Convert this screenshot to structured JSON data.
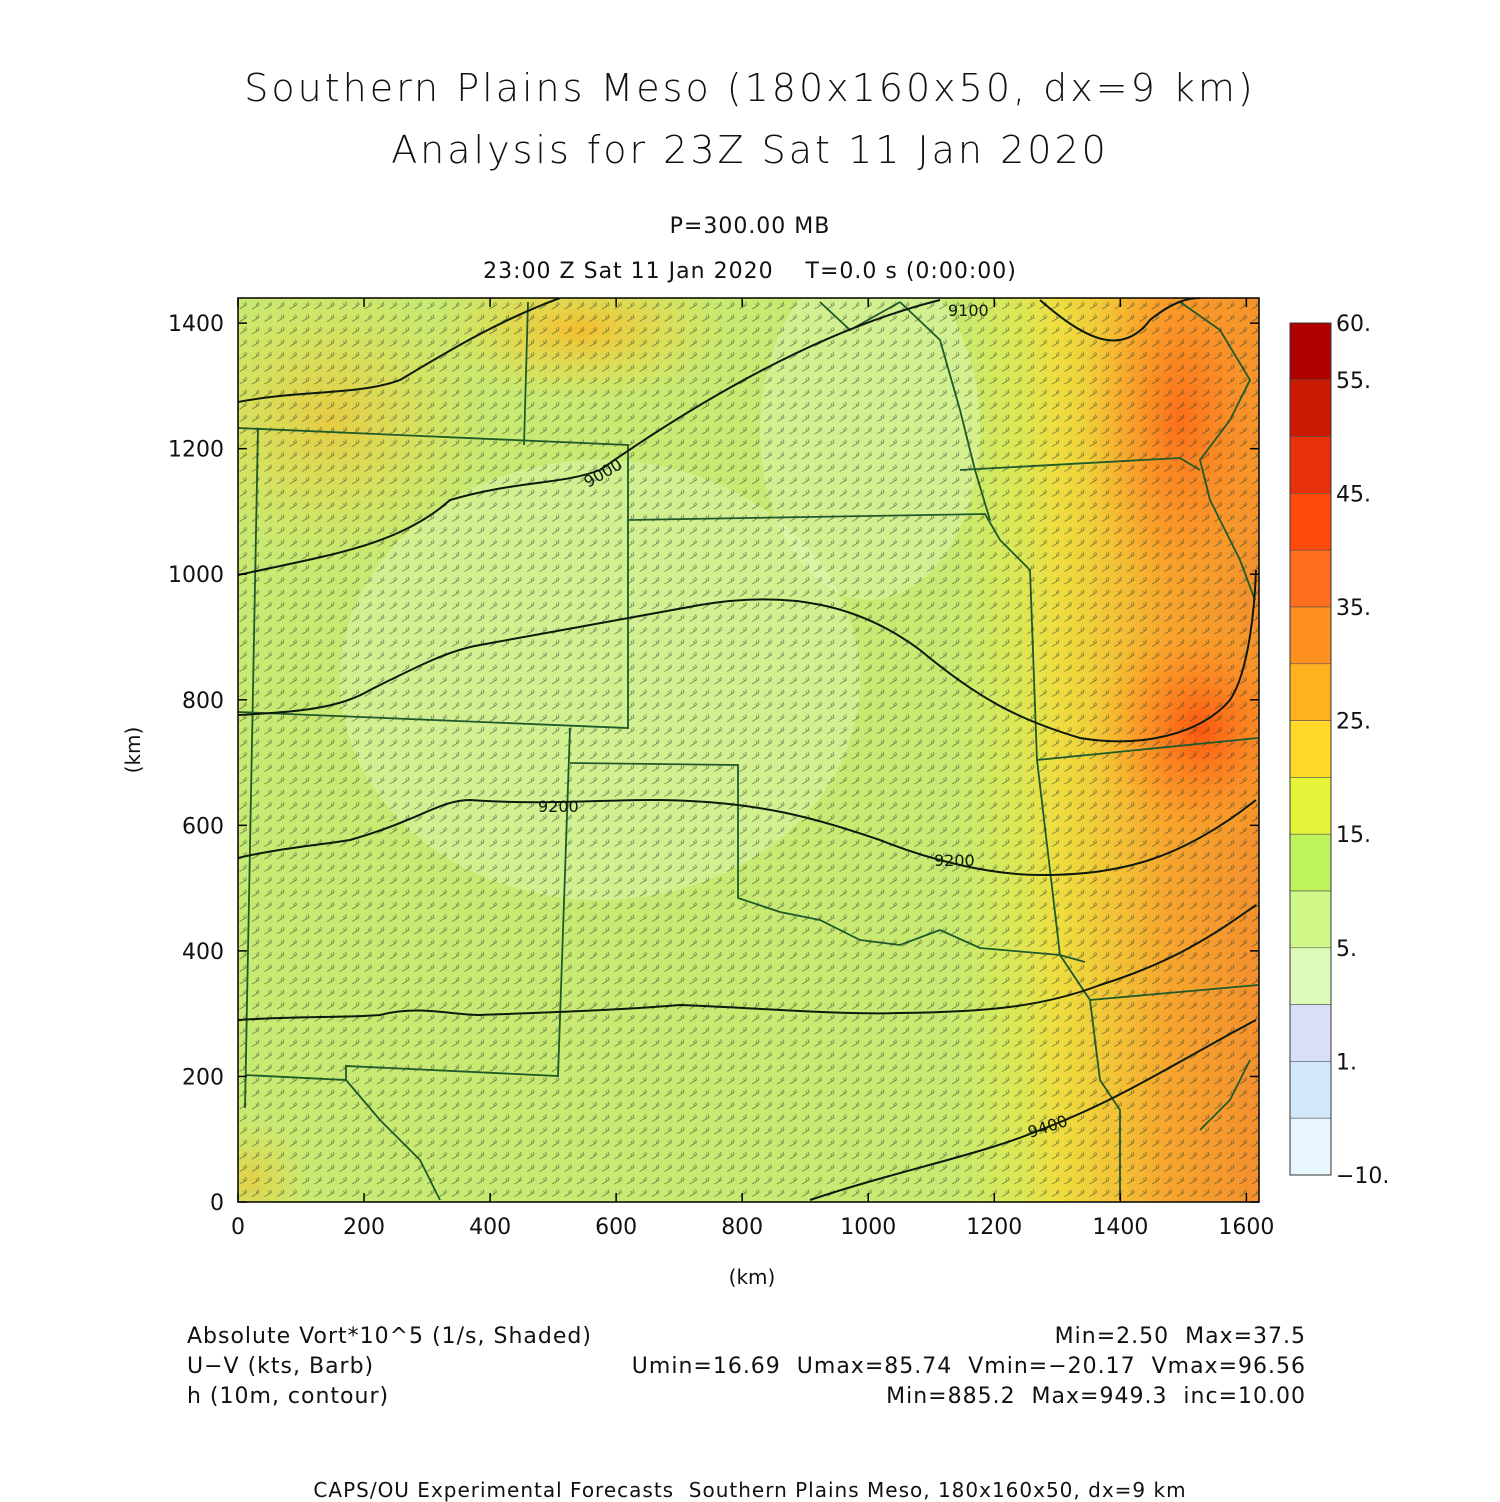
{
  "titles": {
    "line1": "Southern Plains Meso (180x160x50, dx=9 km)",
    "line2": "Analysis for 23Z Sat 11 Jan 2020",
    "level": "P=300.00 MB",
    "time": "23:00 Z Sat 11 Jan 2020    T=0.0 s (0:00:00)"
  },
  "axes": {
    "x_label": "(km)",
    "y_label": "(km)",
    "x_ticks": [
      "0",
      "200",
      "400",
      "600",
      "800",
      "1000",
      "1200",
      "1400",
      "1600"
    ],
    "y_ticks": [
      "0",
      "200",
      "400",
      "600",
      "800",
      "1000",
      "1200",
      "1400"
    ],
    "x_range_km": [
      0,
      1620
    ],
    "y_range_km": [
      0,
      1440
    ]
  },
  "contour_labels": [
    "9000",
    "9200",
    "9200",
    "9400",
    "9100"
  ],
  "colorbar": {
    "labels": [
      "60.",
      "55.",
      "45.",
      "35.",
      "25.",
      "15.",
      "5.",
      "1.",
      "−10."
    ],
    "colors": [
      "#b00000",
      "#cc1a00",
      "#e8300a",
      "#ff4a0a",
      "#ff6e1a",
      "#ff9020",
      "#ffb21e",
      "#ffd82a",
      "#e6f53a",
      "#bff35a",
      "#cff888",
      "#dcfbb8",
      "#d8e0f8",
      "#d4e8fc",
      "#e8f6ff"
    ]
  },
  "legend": {
    "field1": "Absolute Vort*10^5 (1/s, Shaded)",
    "field1_stats": "Min=2.50  Max=37.5",
    "field2": "U−V (kts, Barb)",
    "field2_stats": "Umin=16.69  Umax=85.74  Vmin=−20.17  Vmax=96.56",
    "field3": "h (10m, contour)",
    "field3_stats": "Min=885.2  Max=949.3  inc=10.00"
  },
  "footer": "CAPS/OU Experimental Forecasts  Southern Plains Meso, 180x160x50, dx=9 km"
}
